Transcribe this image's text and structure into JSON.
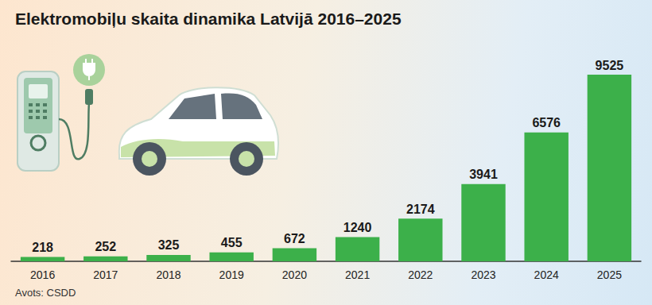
{
  "chart_data": {
    "type": "bar",
    "title": "Elektromobiļu skaita dinamika Latvijā 2016–2025",
    "source": "Avots: CSDD",
    "categories": [
      "2016",
      "2017",
      "2018",
      "2019",
      "2020",
      "2021",
      "2022",
      "2023",
      "2024",
      "2025"
    ],
    "values": [
      218,
      252,
      325,
      455,
      672,
      1240,
      2174,
      3941,
      6576,
      9525
    ],
    "color": "#3cb04a",
    "ylim": [
      0,
      10500
    ],
    "grid": false,
    "data_labels": true,
    "tick_labels": "x"
  }
}
